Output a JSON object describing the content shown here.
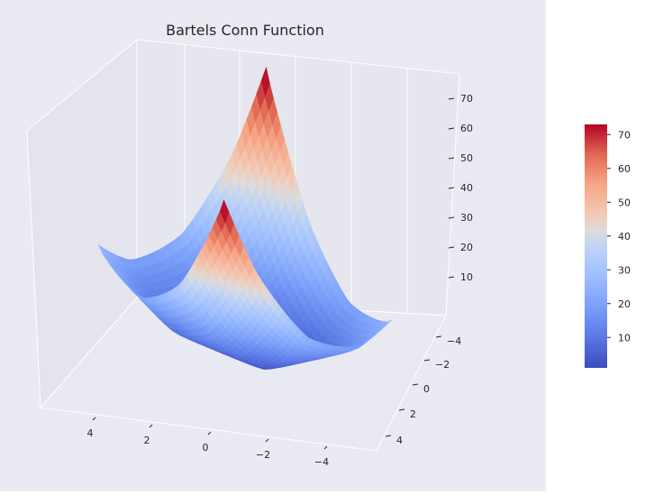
{
  "chart_data": {
    "type": "surface",
    "title": "Bartels Conn Function",
    "function": "|x^2 + y^2 + x*y| + |sin(x)| + |cos(y)|",
    "x_range": [
      -5,
      5
    ],
    "y_range": [
      -5,
      5
    ],
    "z_range": [
      1,
      73
    ],
    "x_ticks": [
      4,
      2,
      0,
      -2,
      -4
    ],
    "x_tick_labels": [
      "4",
      "2",
      "0",
      "−2",
      "−4"
    ],
    "y_ticks": [
      -4,
      -2,
      0,
      2,
      4
    ],
    "y_tick_labels": [
      "−4",
      "−2",
      "0",
      "2",
      "4"
    ],
    "z_ticks": [
      10,
      20,
      30,
      40,
      50,
      60,
      70
    ],
    "z_tick_labels": [
      "10",
      "20",
      "30",
      "40",
      "50",
      "60",
      "70"
    ],
    "colormap": "coolwarm",
    "colorbar": {
      "range": [
        1,
        73
      ],
      "ticks": [
        10,
        20,
        30,
        40,
        50,
        60,
        70
      ],
      "tick_labels": [
        "10",
        "20",
        "30",
        "40",
        "50",
        "60",
        "70"
      ]
    },
    "grid": true,
    "background": "#eaeaf2",
    "colors": {
      "low": "#3b4cc0",
      "mid": "#dddddd",
      "high": "#b40426"
    }
  }
}
